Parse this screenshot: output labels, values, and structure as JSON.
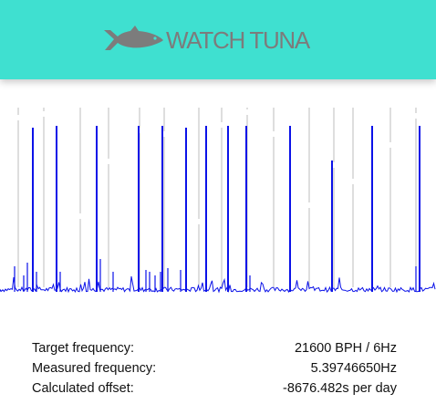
{
  "header": {
    "brand": "WATCH TUNA",
    "logo_icon": "tuna-fish-icon",
    "background": "#3fe0d0",
    "brand_color": "#7c7c7c"
  },
  "trace": {
    "color": "#0b12e8",
    "divider_color": "#bdbdbd",
    "beat_period_ms": 166.7
  },
  "stats": [
    {
      "label": "Target frequency:",
      "value": "21600 BPH / 6Hz"
    },
    {
      "label": "Measured frequency:",
      "value": "5.39746650Hz"
    },
    {
      "label": "Calculated offset:",
      "value": "-8676.482s per day"
    }
  ]
}
